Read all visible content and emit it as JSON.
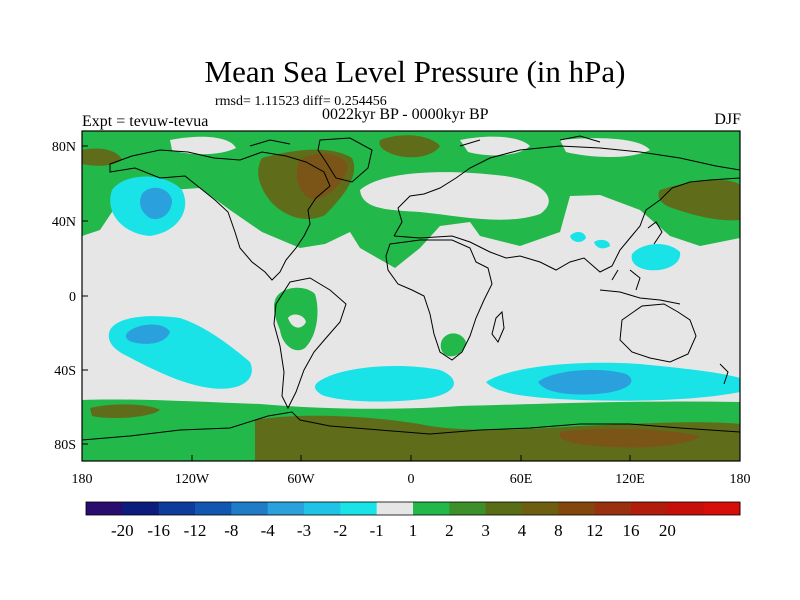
{
  "title": "Mean Sea Level Pressure (in hPa)",
  "stats": "rmsd= 1.11523  diff= 0.254456",
  "period": "0022kyr BP - 0000kyr BP",
  "experiment": "Expt = tevuw-tevua",
  "season": "DJF",
  "map": {
    "lat_ticks": [
      "80N",
      "40N",
      "0",
      "40S",
      "80S"
    ],
    "lon_ticks": [
      "180",
      "120W",
      "60W",
      "0",
      "60E",
      "120E",
      "180"
    ],
    "colors": {
      "neutral": "#e6e6e6",
      "cyan": "#19e3e7",
      "blue": "#2aa1dc",
      "green": "#22b84a",
      "green_dark": "#3d8f29",
      "olive": "#5f6d1a",
      "brown": "#7a5517",
      "coastline": "#000000"
    }
  },
  "colorbar": {
    "colors": [
      "#290c6e",
      "#0c1c7c",
      "#0f3b9a",
      "#1157b1",
      "#1f7cc6",
      "#2aa1dc",
      "#1ec3e6",
      "#19e3e7",
      "#e6e6e6",
      "#22b84a",
      "#3d8f29",
      "#586d15",
      "#6e5f10",
      "#83470e",
      "#993010",
      "#b21c0a",
      "#c60f0a",
      "#d60d08"
    ],
    "labels": [
      "-20",
      "-16",
      "-12",
      "-8",
      "-4",
      "-3",
      "-2",
      "-1",
      "1",
      "2",
      "3",
      "4",
      "8",
      "12",
      "16",
      "20"
    ]
  }
}
